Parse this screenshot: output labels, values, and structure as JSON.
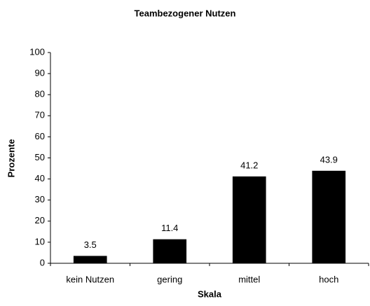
{
  "chart_data": {
    "type": "bar",
    "title": "Teambezogener Nutzen",
    "x_label": "Skala",
    "y_label": "Prozente",
    "categories": [
      "kein Nutzen",
      "gering",
      "mittel",
      "hoch"
    ],
    "values": [
      3.5,
      11.4,
      41.2,
      43.9
    ],
    "color": "#000000",
    "ylim": [
      0,
      100
    ],
    "yticks": [
      0,
      10,
      20,
      30,
      40,
      50,
      60,
      70,
      80,
      90,
      100
    ],
    "grid": false
  }
}
